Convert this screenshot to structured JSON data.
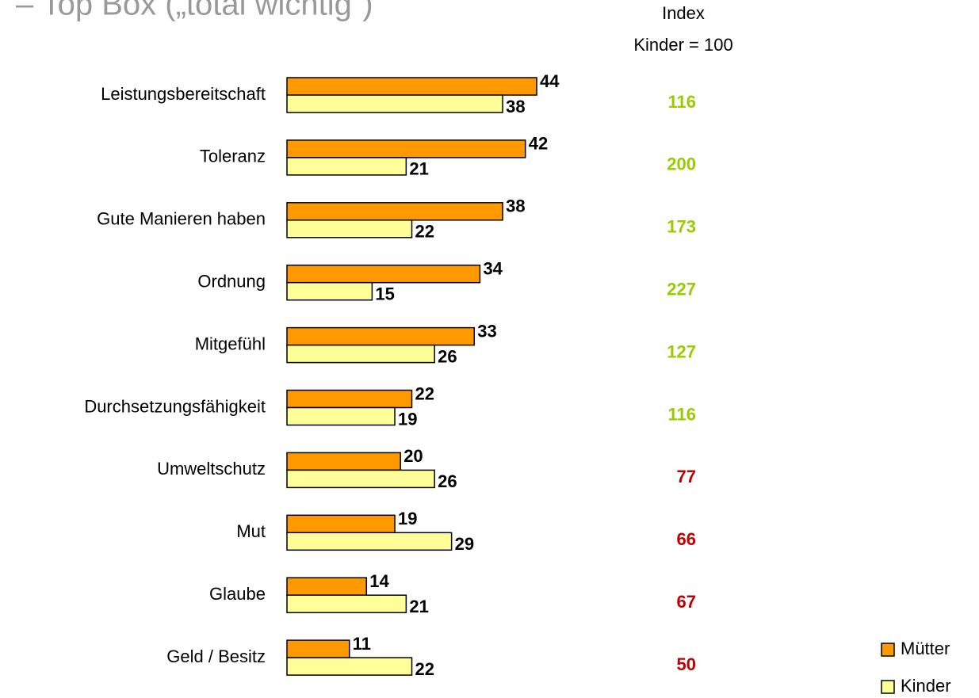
{
  "chart_data": {
    "type": "bar",
    "orientation": "horizontal",
    "title": "– Top Box („total wichtig“)",
    "categories": [
      "Leistungsbereitschaft",
      "Toleranz",
      "Gute Manieren haben",
      "Ordnung",
      "Mitgefühl",
      "Durchsetzungsfähigkeit",
      "Umweltschutz",
      "Mut",
      "Glaube",
      "Geld / Besitz"
    ],
    "series": [
      {
        "name": "Mütter",
        "color": "#ff9900",
        "values": [
          44,
          42,
          38,
          34,
          33,
          22,
          20,
          19,
          14,
          11
        ]
      },
      {
        "name": "Kinder",
        "color": "#ffff99",
        "values": [
          38,
          21,
          22,
          15,
          26,
          19,
          26,
          29,
          21,
          22
        ]
      }
    ],
    "xlim": [
      0,
      50
    ],
    "legend": "bottom-right",
    "index": {
      "title_lines": [
        "Index",
        "Kinder = 100"
      ],
      "values": [
        116,
        200,
        173,
        227,
        127,
        116,
        77,
        66,
        67,
        50
      ],
      "colors": [
        "#99cc00",
        "#99cc00",
        "#99cc00",
        "#99cc00",
        "#99cc00",
        "#99cc00",
        "#c00000",
        "#c00000",
        "#c00000",
        "#c00000"
      ]
    }
  }
}
